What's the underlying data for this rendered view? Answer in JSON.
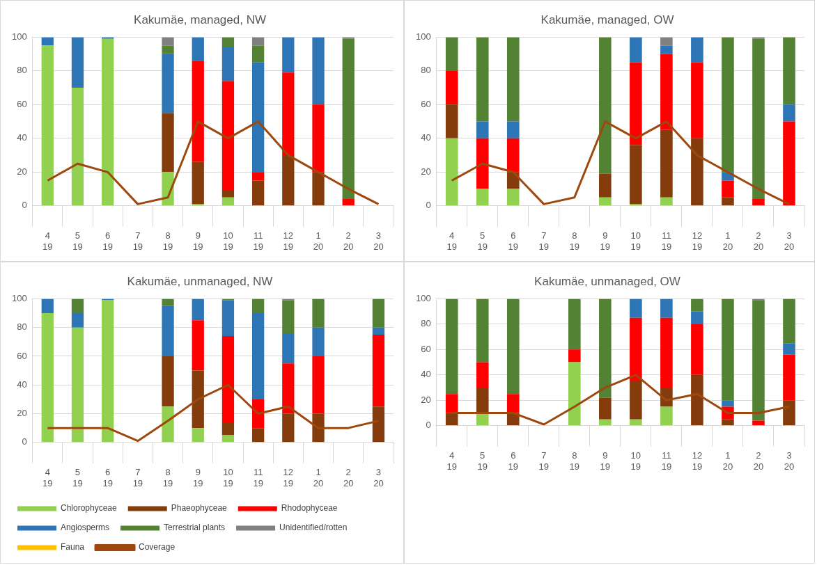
{
  "chart_data": [
    {
      "type": "bar",
      "title": "Kakumäe, managed, NW",
      "stacked": true,
      "grid": "y",
      "legend": false,
      "marker": "none",
      "ylim": [
        0,
        100
      ],
      "yticks": [
        0,
        20,
        40,
        60,
        80,
        100
      ],
      "categories": [
        "4\n19",
        "5\n19",
        "6\n19",
        "7\n19",
        "8\n19",
        "9\n19",
        "10\n19",
        "11\n19",
        "12\n19",
        "1\n20",
        "2\n20",
        "3\n20"
      ],
      "series": [
        {
          "color": "#92d050",
          "values": [
            95,
            70,
            99,
            0,
            20,
            1,
            5,
            0,
            0,
            0,
            0,
            0
          ]
        },
        {
          "color": "#843c0c",
          "values": [
            0,
            0,
            0,
            0,
            35,
            25,
            4,
            15,
            30,
            20,
            0,
            0
          ]
        },
        {
          "color": "#ff0000",
          "values": [
            0,
            0,
            0,
            0,
            0,
            60,
            65,
            5,
            49,
            40,
            4,
            0
          ]
        },
        {
          "color": "#2e75b6",
          "values": [
            5,
            30,
            1,
            0,
            35,
            14,
            20,
            65,
            21,
            40,
            0,
            0
          ]
        },
        {
          "color": "#548235",
          "values": [
            0,
            0,
            0,
            0,
            5,
            0,
            6,
            10,
            0,
            0,
            95,
            0
          ]
        },
        {
          "color": "#808080",
          "values": [
            0,
            0,
            0,
            0,
            5,
            0,
            0,
            5,
            0,
            0,
            1,
            0
          ]
        },
        {
          "color": "#ffc000",
          "values": [
            0,
            0,
            0,
            0,
            0,
            0,
            0,
            0,
            0,
            0,
            0,
            0
          ]
        },
        {
          "type": "line",
          "color": "#9e480e",
          "values": [
            15,
            25,
            20,
            1,
            5,
            50,
            40,
            50,
            30,
            20,
            10,
            1
          ]
        }
      ]
    },
    {
      "type": "bar",
      "title": "Kakumäe, managed, OW",
      "stacked": true,
      "grid": "y",
      "legend": false,
      "marker": "none",
      "ylim": [
        0,
        100
      ],
      "yticks": [
        0,
        20,
        40,
        60,
        80,
        100
      ],
      "categories": [
        "4\n19",
        "5\n19",
        "6\n19",
        "7\n19",
        "8\n19",
        "9\n19",
        "10\n19",
        "11\n19",
        "12\n19",
        "1\n20",
        "2\n20",
        "3\n20"
      ],
      "series": [
        {
          "color": "#92d050",
          "values": [
            40,
            10,
            10,
            0,
            0,
            5,
            1,
            5,
            0,
            0,
            0,
            0
          ]
        },
        {
          "color": "#843c0c",
          "values": [
            20,
            0,
            10,
            0,
            0,
            14,
            35,
            40,
            40,
            5,
            0,
            0
          ]
        },
        {
          "color": "#ff0000",
          "values": [
            20,
            30,
            20,
            0,
            0,
            0,
            49,
            45,
            45,
            10,
            4,
            50
          ]
        },
        {
          "color": "#2e75b6",
          "values": [
            0,
            10,
            10,
            0,
            0,
            0,
            15,
            5,
            15,
            5,
            0,
            10
          ]
        },
        {
          "color": "#548235",
          "values": [
            20,
            50,
            50,
            0,
            0,
            81,
            0,
            0,
            0,
            80,
            95,
            40
          ]
        },
        {
          "color": "#808080",
          "values": [
            0,
            0,
            0,
            0,
            0,
            0,
            0,
            5,
            0,
            0,
            1,
            0
          ]
        },
        {
          "color": "#ffc000",
          "values": [
            0,
            0,
            0,
            0,
            0,
            0,
            0,
            0,
            0,
            0,
            0,
            0
          ]
        },
        {
          "type": "line",
          "color": "#9e480e",
          "values": [
            15,
            25,
            20,
            1,
            5,
            50,
            40,
            50,
            30,
            20,
            10,
            1
          ]
        }
      ]
    },
    {
      "type": "bar",
      "title": "Kakumäe, unmanaged, NW",
      "stacked": true,
      "grid": "y",
      "legend": "bottom",
      "marker": "none",
      "ylim": [
        0,
        100
      ],
      "yticks": [
        0,
        20,
        40,
        60,
        80,
        100
      ],
      "categories": [
        "4\n19",
        "5\n19",
        "6\n19",
        "7\n19",
        "8\n19",
        "9\n19",
        "10\n19",
        "11\n19",
        "12\n19",
        "1\n20",
        "2\n20",
        "3\n20"
      ],
      "series": [
        {
          "name": "Chlorophyceae",
          "color": "#92d050",
          "values": [
            90,
            80,
            99,
            0,
            25,
            10,
            5,
            0,
            0,
            0,
            0,
            0
          ]
        },
        {
          "name": "Phaeophyceae",
          "color": "#843c0c",
          "values": [
            0,
            0,
            0,
            0,
            35,
            40,
            9,
            10,
            20,
            20,
            0,
            25
          ]
        },
        {
          "name": "Rhodophyceae",
          "color": "#ff0000",
          "values": [
            0,
            0,
            0,
            0,
            0,
            35,
            60,
            20,
            35,
            40,
            0,
            50
          ]
        },
        {
          "name": "Angiosperms",
          "color": "#2e75b6",
          "values": [
            10,
            10,
            1,
            0,
            35,
            15,
            25,
            60,
            21,
            20,
            0,
            5
          ]
        },
        {
          "name": "Terrestrial plants",
          "color": "#548235",
          "values": [
            0,
            10,
            0,
            0,
            5,
            0,
            1,
            10,
            23,
            20,
            0,
            20
          ]
        },
        {
          "name": "Unidentified/rotten",
          "color": "#808080",
          "values": [
            0,
            0,
            0,
            0,
            0,
            0,
            0,
            0,
            1,
            0,
            0,
            0
          ]
        },
        {
          "name": "Fauna",
          "color": "#ffc000",
          "values": [
            0,
            0,
            0,
            0,
            0,
            0,
            0,
            0,
            0,
            0,
            0,
            0
          ]
        },
        {
          "name": "Coverage",
          "type": "line",
          "color": "#9e480e",
          "values": [
            10,
            10,
            10,
            1,
            15,
            30,
            40,
            20,
            25,
            10,
            10,
            15
          ]
        }
      ]
    },
    {
      "type": "bar",
      "title": "Kakumäe, unmanaged, OW",
      "stacked": true,
      "grid": "y",
      "legend": false,
      "marker": "none",
      "ylim": [
        0,
        100
      ],
      "yticks": [
        0,
        20,
        40,
        60,
        80,
        100
      ],
      "categories": [
        "4\n19",
        "5\n19",
        "6\n19",
        "7\n19",
        "8\n19",
        "9\n19",
        "10\n19",
        "11\n19",
        "12\n19",
        "1\n20",
        "2\n20",
        "3\n20"
      ],
      "series": [
        {
          "color": "#92d050",
          "values": [
            0,
            10,
            0,
            0,
            50,
            5,
            5,
            15,
            0,
            0,
            0,
            0
          ]
        },
        {
          "color": "#843c0c",
          "values": [
            10,
            20,
            10,
            0,
            0,
            17,
            30,
            15,
            40,
            5,
            0,
            20
          ]
        },
        {
          "color": "#ff0000",
          "values": [
            15,
            20,
            15,
            0,
            10,
            0,
            50,
            55,
            40,
            10,
            4,
            36
          ]
        },
        {
          "color": "#2e75b6",
          "values": [
            0,
            0,
            0,
            0,
            0,
            0,
            15,
            15,
            10,
            5,
            0,
            9
          ]
        },
        {
          "color": "#548235",
          "values": [
            75,
            50,
            75,
            0,
            40,
            78,
            0,
            0,
            10,
            80,
            95,
            35
          ]
        },
        {
          "color": "#808080",
          "values": [
            0,
            0,
            0,
            0,
            0,
            0,
            0,
            0,
            0,
            0,
            1,
            0
          ]
        },
        {
          "color": "#ffc000",
          "values": [
            0,
            0,
            0,
            0,
            0,
            0,
            0,
            0,
            0,
            0,
            0,
            0
          ]
        },
        {
          "type": "line",
          "color": "#9e480e",
          "values": [
            10,
            10,
            10,
            1,
            15,
            30,
            40,
            20,
            25,
            10,
            10,
            15
          ]
        }
      ]
    }
  ]
}
